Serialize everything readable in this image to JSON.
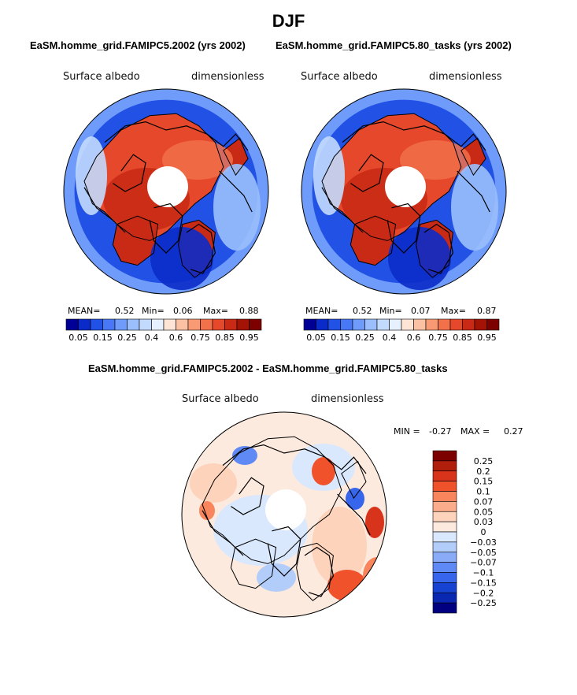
{
  "page": {
    "title": "DJF"
  },
  "panels": [
    {
      "id": "top-left",
      "title": "EaSM.homme_grid.FAMIPC5.2002 (yrs 2002)",
      "variable": "Surface albedo",
      "units": "dimensionless",
      "stats": {
        "mean_label": "MEAN=",
        "mean": "0.52",
        "min_label": "Min=",
        "min": "0.06",
        "max_label": "Max=",
        "max": "0.88"
      }
    },
    {
      "id": "top-right",
      "title": "EaSM.homme_grid.FAMIPC5.80_tasks (yrs 2002)",
      "variable": "Surface albedo",
      "units": "dimensionless",
      "stats": {
        "mean_label": "MEAN=",
        "mean": "0.52",
        "min_label": "Min=",
        "min": "0.07",
        "max_label": "Max=",
        "max": "0.87"
      }
    },
    {
      "id": "bottom",
      "title": "EaSM.homme_grid.FAMIPC5.2002 - EaSM.homme_grid.FAMIPC5.80_tasks",
      "variable": "Surface albedo",
      "units": "dimensionless",
      "stats": {
        "min_label": "MIN =",
        "min": "-0.27",
        "max_label": "MAX =",
        "max": "0.27"
      }
    }
  ],
  "chart_data": [
    {
      "type": "heatmap",
      "projection": "north-polar-stereographic",
      "title": "EaSM.homme_grid.FAMIPC5.2002 (yrs 2002)",
      "variable": "Surface albedo",
      "units": "dimensionless",
      "mean": 0.52,
      "min": 0.06,
      "max": 0.88,
      "levels": [
        0.05,
        0.1,
        0.15,
        0.2,
        0.25,
        0.3,
        0.4,
        0.5,
        0.6,
        0.7,
        0.75,
        0.8,
        0.85,
        0.9,
        0.95
      ],
      "colorbar_labels": [
        "0.05",
        "0.15",
        "0.25",
        "0.4",
        "0.6",
        "0.75",
        "0.85",
        "0.95"
      ],
      "colors": [
        "#000096",
        "#0b2bc8",
        "#2251e6",
        "#4878f5",
        "#6f9cfa",
        "#9abffc",
        "#c2dafd",
        "#e6f0fe",
        "#fde4d4",
        "#fbc1a3",
        "#f89a74",
        "#f2704a",
        "#e5482a",
        "#c92a15",
        "#a31306",
        "#7d0000"
      ]
    },
    {
      "type": "heatmap",
      "projection": "north-polar-stereographic",
      "title": "EaSM.homme_grid.FAMIPC5.80_tasks (yrs 2002)",
      "variable": "Surface albedo",
      "units": "dimensionless",
      "mean": 0.52,
      "min": 0.07,
      "max": 0.87,
      "levels": [
        0.05,
        0.1,
        0.15,
        0.2,
        0.25,
        0.3,
        0.4,
        0.5,
        0.6,
        0.7,
        0.75,
        0.8,
        0.85,
        0.9,
        0.95
      ],
      "colorbar_labels": [
        "0.05",
        "0.15",
        "0.25",
        "0.4",
        "0.6",
        "0.75",
        "0.85",
        "0.95"
      ],
      "colors": [
        "#000096",
        "#0b2bc8",
        "#2251e6",
        "#4878f5",
        "#6f9cfa",
        "#9abffc",
        "#c2dafd",
        "#e6f0fe",
        "#fde4d4",
        "#fbc1a3",
        "#f89a74",
        "#f2704a",
        "#e5482a",
        "#c92a15",
        "#a31306",
        "#7d0000"
      ]
    },
    {
      "type": "heatmap",
      "projection": "north-polar-stereographic",
      "title": "EaSM.homme_grid.FAMIPC5.2002 - EaSM.homme_grid.FAMIPC5.80_tasks",
      "variable": "Surface albedo",
      "units": "dimensionless",
      "min": -0.27,
      "max": 0.27,
      "levels": [
        -0.25,
        -0.2,
        -0.15,
        -0.1,
        -0.07,
        -0.05,
        -0.03,
        0,
        0.03,
        0.05,
        0.07,
        0.1,
        0.15,
        0.2,
        0.25
      ],
      "colorbar_labels": [
        "0.25",
        "0.2",
        "0.15",
        "0.1",
        "0.07",
        "0.05",
        "0.03",
        "0",
        "−0.03",
        "−0.05",
        "−0.07",
        "−0.1",
        "−0.15",
        "−0.2",
        "−0.25"
      ],
      "colors": [
        "#7d0000",
        "#b01e0c",
        "#d8331b",
        "#f0532c",
        "#f8855c",
        "#fbac8a",
        "#fdd3bc",
        "#fdeadf",
        "#dae8fd",
        "#b3cdfb",
        "#8aacf8",
        "#5f89f4",
        "#3765ec",
        "#1743d2",
        "#0a27b1",
        "#000080"
      ]
    }
  ]
}
